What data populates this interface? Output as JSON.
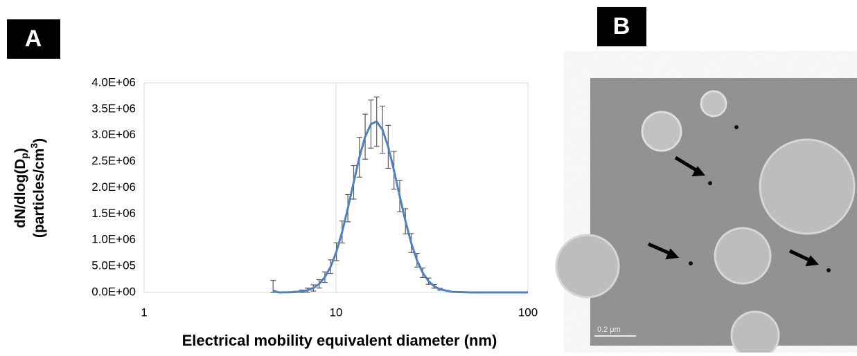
{
  "panel_labels": [
    "A",
    "B"
  ],
  "chart_data": {
    "type": "line",
    "xlabel": "Electrical mobility equivalent diameter (nm)",
    "ylabel_lines": [
      [
        "dN/dlog(D",
        "p",
        ")"
      ],
      [
        "(particles/cm",
        "3",
        ")"
      ]
    ],
    "x": [
      4.7,
      5.04,
      5.4,
      5.78,
      6.19,
      6.64,
      7.11,
      7.62,
      8.17,
      8.75,
      9.38,
      10.05,
      10.76,
      11.53,
      12.36,
      13.24,
      14.19,
      15.21,
      16.29,
      17.46,
      18.71,
      20.04,
      21.48,
      23.01,
      24.66,
      26.42,
      28.31,
      30.34,
      32.51,
      34.83,
      40,
      50,
      60,
      70,
      80,
      90,
      100
    ],
    "series": [
      {
        "color": "#4f81bd",
        "error_color": "#595959",
        "values": [
          30000,
          460,
          1290,
          3370,
          8270,
          19200,
          41800,
          85000,
          163000,
          291000,
          492000,
          777000,
          1153000,
          1608000,
          2102000,
          2581000,
          2974000,
          3215000,
          3263000,
          3108000,
          2780000,
          2332000,
          1837000,
          1358000,
          942000,
          614000,
          375000,
          215000,
          116000,
          58800,
          12400,
          0,
          0,
          0,
          0,
          0,
          0
        ],
        "errors": [
          200000,
          2000,
          4000,
          8000,
          15000,
          25000,
          40000,
          60000,
          80000,
          100000,
          130000,
          170000,
          210000,
          260000,
          320000,
          380000,
          430000,
          460000,
          470000,
          450000,
          410000,
          360000,
          300000,
          240000,
          180000,
          130000,
          90000,
          60000,
          35000,
          18000,
          5000,
          0,
          0,
          0,
          0,
          0,
          0
        ]
      }
    ],
    "xscale": "log",
    "xlim": [
      1,
      100
    ],
    "xticks": [
      1,
      10,
      100
    ],
    "ylim": [
      0,
      4000000
    ],
    "yticks": [
      {
        "value": 0,
        "label": "0.0E+00"
      },
      {
        "value": 500000,
        "label": "5.0E+05"
      },
      {
        "value": 1000000,
        "label": "1.0E+06"
      },
      {
        "value": 1500000,
        "label": "1.5E+06"
      },
      {
        "value": 2000000,
        "label": "2.0E+06"
      },
      {
        "value": 2500000,
        "label": "2.5E+06"
      },
      {
        "value": 3000000,
        "label": "3.0E+06"
      },
      {
        "value": 3500000,
        "label": "3.5E+06"
      },
      {
        "value": 4000000,
        "label": "4.0E+06"
      }
    ],
    "grid": "x"
  },
  "micrograph": {
    "scale_bar": "0.2 µm"
  }
}
